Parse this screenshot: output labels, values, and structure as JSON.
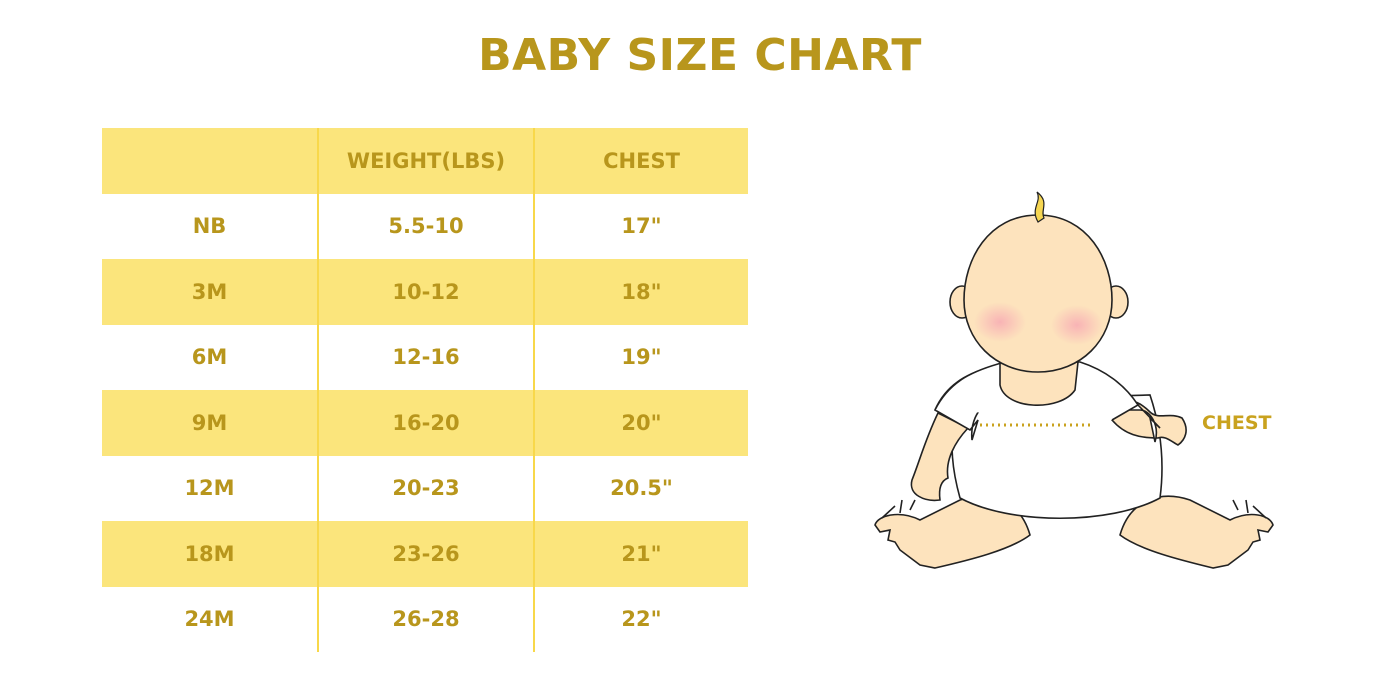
{
  "title": "BABY SIZE CHART",
  "table": {
    "headers": [
      "",
      "WEIGHT(LBS)",
      "CHEST"
    ],
    "rows": [
      [
        "NB",
        "5.5-10",
        "17\""
      ],
      [
        "3M",
        "10-12",
        "18\""
      ],
      [
        "6M",
        "12-16",
        "19\""
      ],
      [
        "9M",
        "16-20",
        "20\""
      ],
      [
        "12M",
        "20-23",
        "20.5\""
      ],
      [
        "18M",
        "23-26",
        "21\""
      ],
      [
        "24M",
        "26-28",
        "22\""
      ]
    ]
  },
  "illustration": {
    "chest_label": "CHEST"
  },
  "colors": {
    "accent_text": "#b8961c",
    "band_yellow": "#fbe57c",
    "skin": "#fde3bd"
  }
}
